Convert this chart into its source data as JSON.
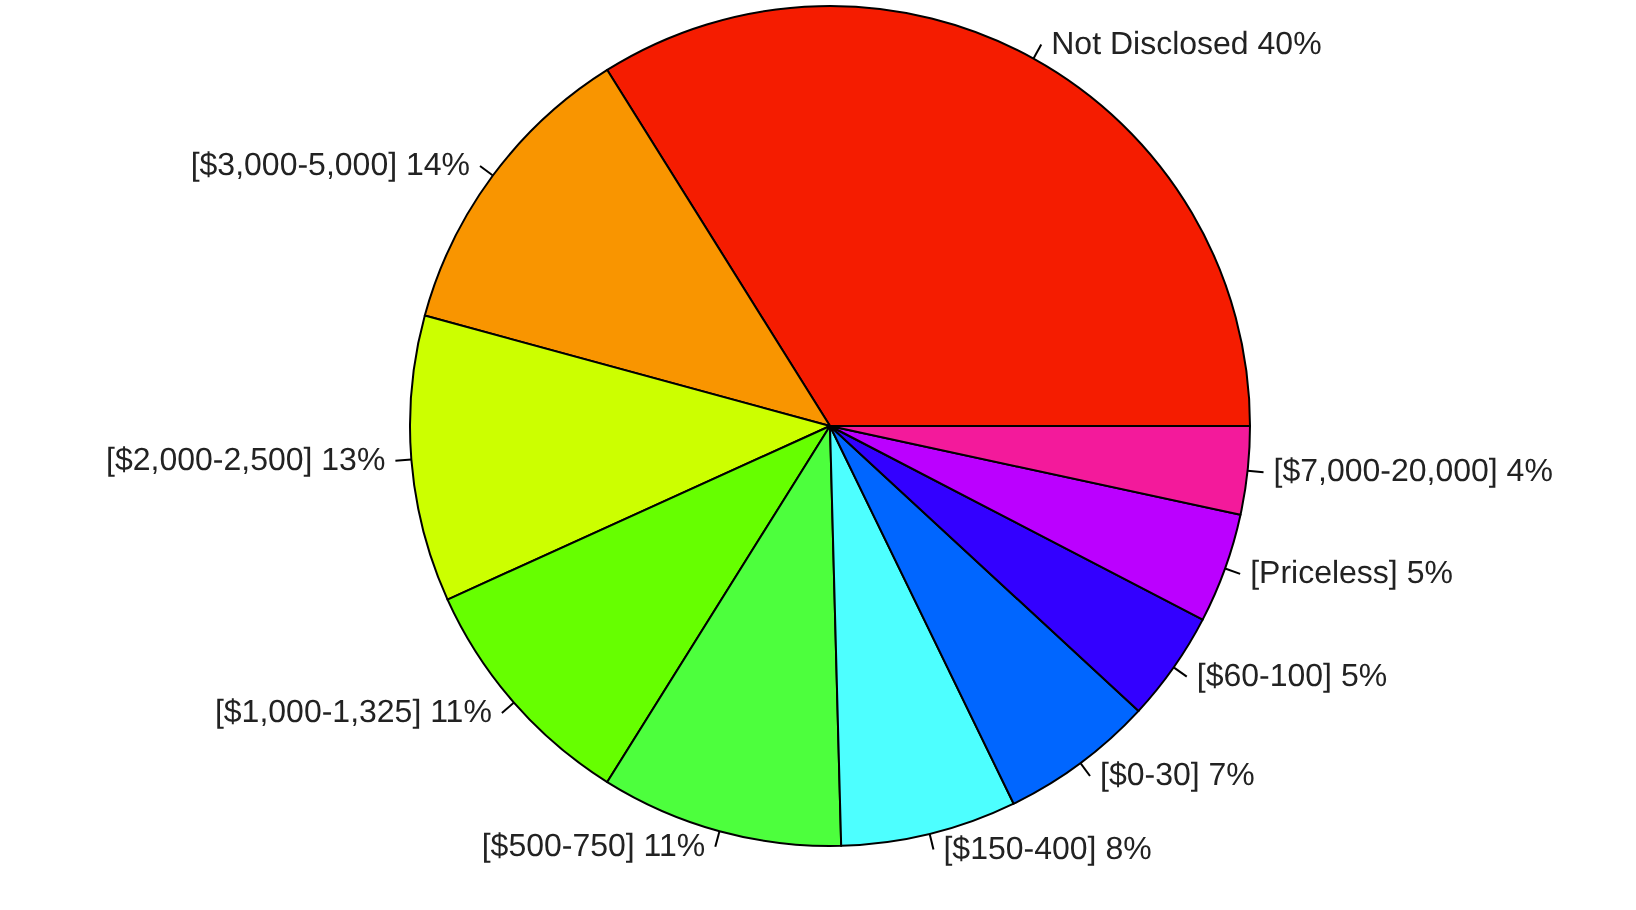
{
  "chart_data": {
    "type": "pie",
    "categories": [
      "Not Disclosed",
      "[$3,000-5,000]",
      "[$2,000-2,500]",
      "[$1,000-1,325]",
      "[$500-750]",
      "[$150-400]",
      "[$0-30]",
      "[$60-100]",
      "[Priceless]",
      "[$7,000-20,000]"
    ],
    "values": [
      40,
      14,
      13,
      11,
      11,
      8,
      7,
      5,
      5,
      4
    ],
    "value_labels": [
      "40%",
      "14%",
      "13%",
      "11%",
      "11%",
      "8%",
      "7%",
      "5%",
      "5%",
      "4%"
    ],
    "colors": [
      "#f51c00",
      "#f99500",
      "#ccff00",
      "#66ff00",
      "#4dff3d",
      "#4dffff",
      "#0066ff",
      "#3300ff",
      "#bb00ff",
      "#f31a9b"
    ],
    "legend": false
  }
}
